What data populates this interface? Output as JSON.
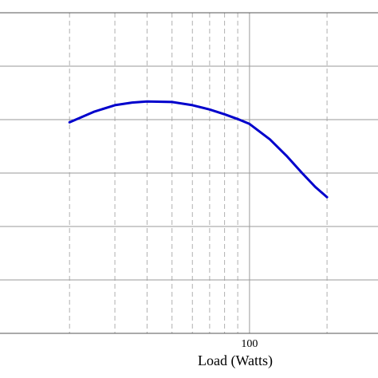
{
  "chart_data": {
    "type": "line",
    "title": "",
    "xlabel": "Load (Watts)",
    "ylabel": "",
    "x_scale": "log",
    "xlim": [
      20,
      200
    ],
    "ylim": [
      0,
      6
    ],
    "x_major_ticks": [
      10,
      100,
      1000
    ],
    "x_tick_labels_visible": [
      "100"
    ],
    "x_minor_ticks": [
      30,
      40,
      50,
      60,
      70,
      80,
      90,
      200
    ],
    "y_grid_lines": [
      1,
      2,
      3,
      4,
      5,
      6
    ],
    "grid": true,
    "line_color": "#0000cc",
    "series": [
      {
        "name": "",
        "x": [
          20,
          25,
          30,
          35,
          40,
          50,
          60,
          70,
          80,
          90,
          100,
          120,
          140,
          160,
          180,
          200
        ],
        "y": [
          3.95,
          4.15,
          4.27,
          4.32,
          4.34,
          4.33,
          4.27,
          4.19,
          4.1,
          4.01,
          3.92,
          3.63,
          3.31,
          3.0,
          2.74,
          2.55
        ]
      }
    ]
  }
}
